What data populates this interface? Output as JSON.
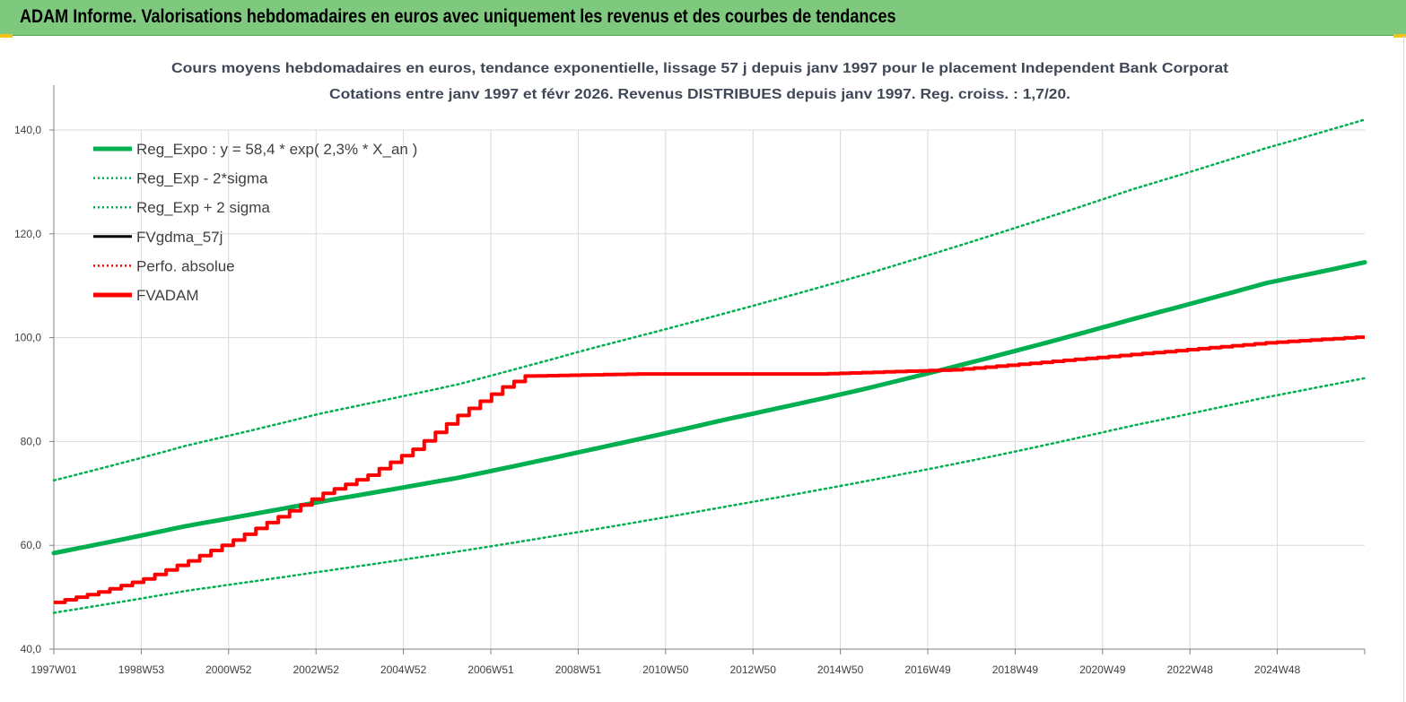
{
  "header": {
    "title": "ADAM Informe. Valorisations hebdomadaires en euros avec uniquement les revenus et des courbes de tendances"
  },
  "colors": {
    "banner": "#7fc97f",
    "green": "#00b050",
    "red": "#ff0000",
    "black": "#000000",
    "grid": "#d9d9d9",
    "title_text": "#404858"
  },
  "chart_data": {
    "type": "line",
    "title_line1": "Cours moyens hebdomadaires en euros, tendance exponentielle, lissage 57 j depuis janv 1997  pour le placement Independent Bank Corporat",
    "title_line2": "Cotations entre janv 1997  et févr  2026. Revenus DISTRIBUES  depuis janv 1997. Reg. croiss. : 1,7/20.",
    "x_tick_labels": [
      "1997W01",
      "1998W53",
      "2000W52",
      "2002W52",
      "2004W52",
      "2006W51",
      "2008W51",
      "2010W50",
      "2012W50",
      "2014W50",
      "2016W49",
      "2018W49",
      "2020W49",
      "2022W48",
      "2024W48"
    ],
    "x_range_years": [
      1997.0,
      2026.2
    ],
    "y_tick_labels": [
      "40,0",
      "60,0",
      "80,0",
      "100,0",
      "120,0",
      "140,0"
    ],
    "ylim": [
      40,
      140
    ],
    "grid": true,
    "legend_position": "top-left",
    "legend": [
      {
        "label": "Reg_Expo : y = 58,4 * exp( 2,3% *  X_an )",
        "color": "#00b050",
        "style": "solid-thick"
      },
      {
        "label": "Reg_Exp - 2*sigma",
        "color": "#00b050",
        "style": "dotted"
      },
      {
        "label": "Reg_Exp + 2 sigma",
        "color": "#00b050",
        "style": "dotted"
      },
      {
        "label": "FVgdma_57j",
        "color": "#000000",
        "style": "solid"
      },
      {
        "label": "Perfo. absolue",
        "color": "#ff0000",
        "style": "dotted"
      },
      {
        "label": "FVADAM",
        "color": "#ff0000",
        "style": "solid-thick"
      }
    ],
    "series": [
      {
        "name": "Reg_Expo : y = 58,4 * exp( 2,3% *  X_an )",
        "x": [
          1997.0,
          2000.0,
          2003.0,
          2006.0,
          2009.0,
          2012.0,
          2015.0,
          2018.0,
          2021.0,
          2024.0,
          2026.2
        ],
        "values": [
          58.5,
          63.8,
          68.5,
          73.0,
          78.5,
          84.3,
          90.0,
          96.5,
          103.5,
          110.5,
          114.5
        ]
      },
      {
        "name": "Reg_Exp - 2*sigma",
        "x": [
          1997.0,
          2000.0,
          2003.0,
          2006.0,
          2009.0,
          2012.0,
          2015.0,
          2018.0,
          2021.0,
          2024.0,
          2026.2
        ],
        "values": [
          47.0,
          51.3,
          55.0,
          58.8,
          63.0,
          67.5,
          72.2,
          77.3,
          83.0,
          88.5,
          92.2
        ]
      },
      {
        "name": "Reg_Exp + 2 sigma",
        "x": [
          1997.0,
          2000.0,
          2003.0,
          2006.0,
          2009.0,
          2012.0,
          2015.0,
          2018.0,
          2021.0,
          2024.0,
          2026.2
        ],
        "values": [
          72.5,
          79.3,
          85.5,
          91.0,
          98.0,
          104.8,
          112.0,
          120.0,
          128.5,
          136.5,
          142.0
        ]
      },
      {
        "name": "FVADAM",
        "x": [
          1997.0,
          1998.0,
          1999.0,
          2000.0,
          2001.0,
          2002.0,
          2003.0,
          2004.0,
          2005.0,
          2006.0,
          2007.0,
          2007.5,
          2010.0,
          2014.0,
          2017.0,
          2018.0,
          2020.0,
          2022.0,
          2024.0,
          2026.2
        ],
        "values": [
          49.0,
          51.0,
          53.5,
          57.0,
          61.0,
          65.5,
          70.0,
          73.5,
          78.5,
          85.0,
          90.5,
          92.6,
          93.0,
          93.0,
          93.8,
          94.5,
          96.0,
          97.5,
          99.0,
          100.2
        ]
      }
    ]
  }
}
